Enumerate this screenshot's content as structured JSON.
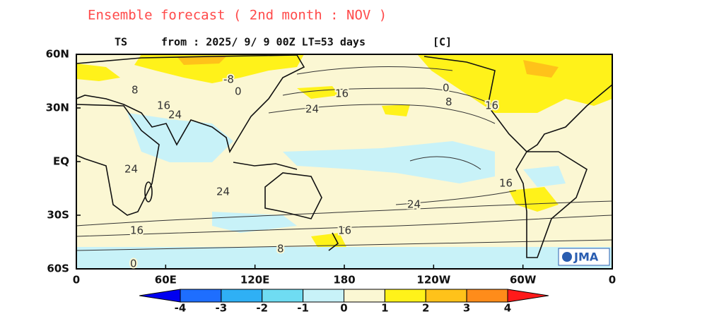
{
  "title": "Ensemble forecast ( 2nd month : NOV )",
  "subtitle": {
    "variable": "TS",
    "run": "from : 2025/ 9/ 9 00Z LT=53 days",
    "unit": "[C]"
  },
  "map": {
    "y_axis_labels": [
      "60N",
      "30N",
      "EQ",
      "30S",
      "60S"
    ],
    "x_axis_labels": [
      "0",
      "60E",
      "120E",
      "180",
      "120W",
      "60W",
      "0"
    ],
    "contour_labels": [
      "-8",
      "0",
      "8",
      "16",
      "24",
      "16",
      "24",
      "0",
      "8",
      "16",
      "24",
      "24",
      "16",
      "24",
      "16",
      "16",
      "8",
      "0"
    ],
    "logo": "JMA"
  },
  "legend": {
    "labels": [
      -4,
      -3,
      -2,
      -1,
      0,
      1,
      2,
      3,
      4
    ],
    "colors": [
      "#0000f0",
      "#1e6eff",
      "#2fb0f5",
      "#6fdcf2",
      "#c8f2f8",
      "#fbf7d3",
      "#fff21a",
      "#ffc21a",
      "#ff8c1a",
      "#ff1a1a"
    ]
  }
}
